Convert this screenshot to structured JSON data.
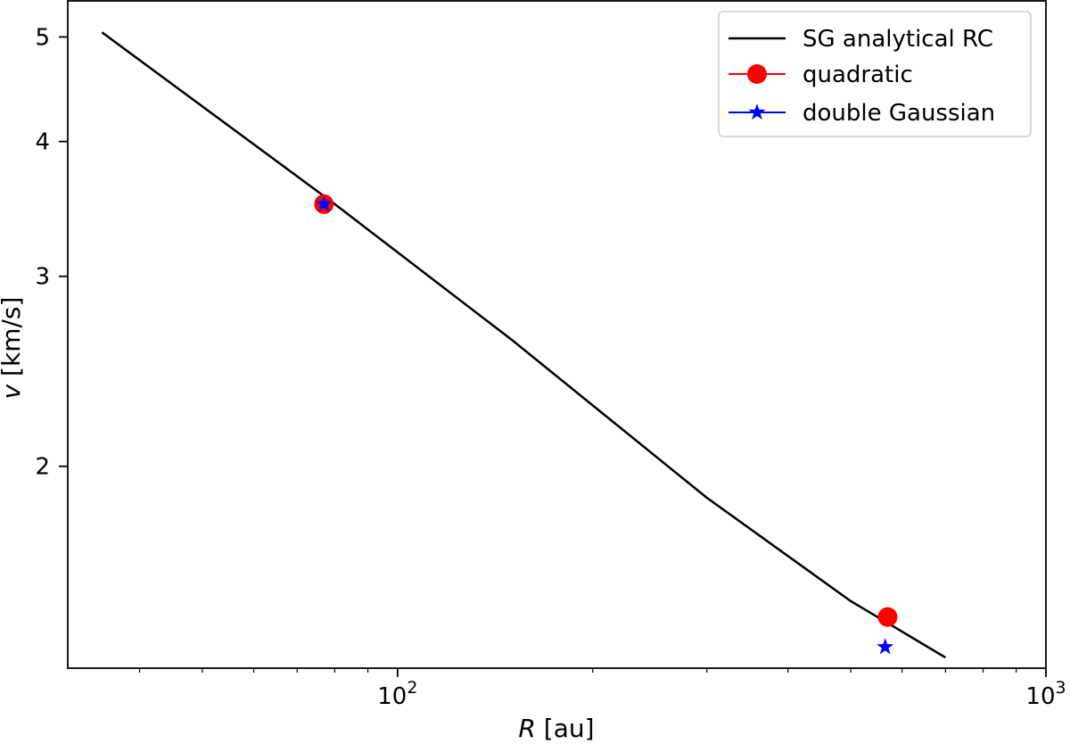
{
  "chart_data": {
    "type": "line",
    "xlabel": {
      "var": "R",
      "unit": "[au]"
    },
    "ylabel": {
      "var": "v",
      "unit": "[km/s]"
    },
    "x_scale": "log",
    "y_scale": "log",
    "xlim": [
      31,
      1000
    ],
    "ylim": [
      1.3,
      5.4
    ],
    "x_major_ticks": [
      {
        "value": 100,
        "base": "10",
        "exp": "2"
      },
      {
        "value": 1000,
        "base": "10",
        "exp": "3"
      }
    ],
    "x_minor_ticks": [
      40,
      50,
      60,
      70,
      80,
      90,
      200,
      300,
      400,
      500,
      600,
      700,
      800,
      900
    ],
    "y_ticks": [
      {
        "value": 2,
        "label": "2"
      },
      {
        "value": 3,
        "label": "3"
      },
      {
        "value": 4,
        "label": "4"
      },
      {
        "value": 5,
        "label": "5"
      }
    ],
    "grid": false,
    "legend_position": "top-right",
    "series": [
      {
        "name": "SG analytical RC",
        "kind": "line",
        "color": "#000000",
        "x": [
          35,
          80,
          150,
          300,
          500,
          700
        ],
        "y": [
          5.05,
          3.5,
          2.62,
          1.87,
          1.5,
          1.33
        ]
      },
      {
        "name": "quadratic",
        "kind": "marker-circle",
        "color": "#ff0000",
        "x": [
          77,
          570
        ],
        "y": [
          3.5,
          1.45
        ]
      },
      {
        "name": "double Gaussian",
        "kind": "marker-star",
        "color": "#0000ff",
        "x": [
          77,
          565
        ],
        "y": [
          3.5,
          1.36
        ]
      }
    ]
  }
}
